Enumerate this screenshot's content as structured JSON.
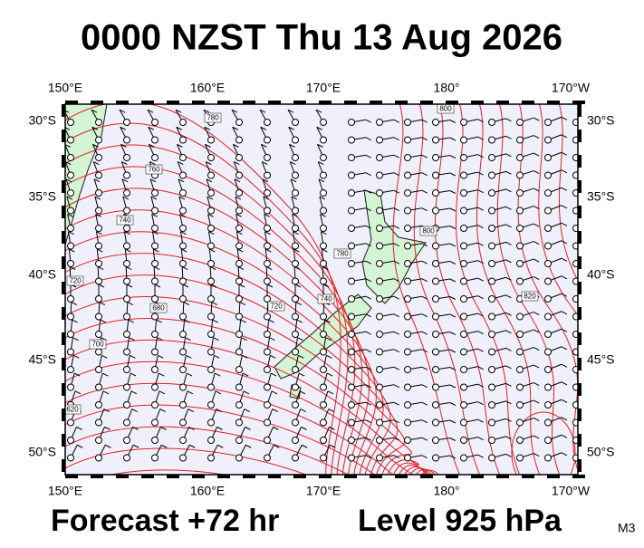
{
  "header": {
    "title": "0000 NZST Thu 13 Aug 2026"
  },
  "map": {
    "top_labels": [
      "150°E",
      "160°E",
      "170°E",
      "180°",
      "170°W"
    ],
    "bottom_labels": [
      "150°E",
      "160°E",
      "170°E",
      "180°",
      "170°W"
    ],
    "left_labels": [
      "30°S",
      "35°S",
      "40°S",
      "45°S",
      "50°S"
    ],
    "right_labels": [
      "30°S",
      "35°S",
      "40°S",
      "45°S",
      "50°S"
    ],
    "contour_labels": [
      "780",
      "760",
      "740",
      "720",
      "700",
      "680",
      "620",
      "800",
      "800",
      "820",
      "780",
      "740",
      "720"
    ]
  },
  "footer": {
    "forecast": "Forecast +72 hr",
    "level": "Level 925 hPa",
    "code": "M3"
  }
}
